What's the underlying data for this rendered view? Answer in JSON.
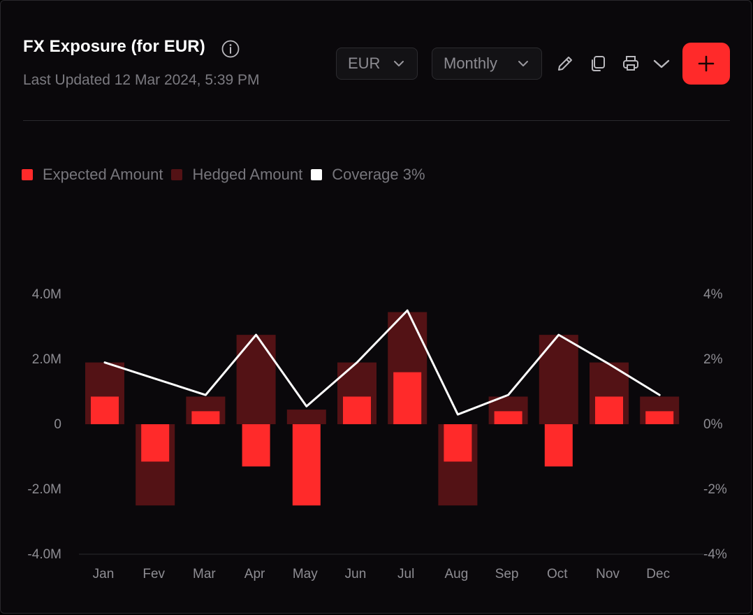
{
  "header": {
    "title": "FX Exposure (for EUR)",
    "last_updated": "Last Updated 12 Mar 2024, 5:39 PM"
  },
  "controls": {
    "currency": "EUR",
    "period": "Monthly"
  },
  "colors": {
    "expected": "#ff2a2a",
    "hedged": "#531215",
    "coverage": "#ffffff",
    "accent": "#ff2a2a"
  },
  "icons": {
    "info": "info-icon",
    "edit": "pencil-icon",
    "copy": "copy-icon",
    "print": "printer-icon",
    "more": "chevron-down-icon",
    "add": "plus-icon"
  },
  "chart_data": {
    "type": "bar",
    "legend": [
      "Expected Amount",
      "Hedged Amount",
      "Coverage 3%"
    ],
    "legend_position": "top-left",
    "categories": [
      "Jan",
      "Fev",
      "Mar",
      "Apr",
      "May",
      "Jun",
      "Jul",
      "Aug",
      "Sep",
      "Oct",
      "Nov",
      "Dec"
    ],
    "series": [
      {
        "name": "Expected Amount",
        "type": "bar",
        "axis": "left",
        "values": [
          0.85,
          -1.15,
          0.4,
          -1.3,
          -2.5,
          0.85,
          1.6,
          -1.15,
          0.4,
          -1.3,
          0.85,
          0.4
        ]
      },
      {
        "name": "Hedged Amount",
        "type": "bar",
        "axis": "left",
        "values": [
          1.9,
          -2.5,
          0.85,
          2.75,
          0.45,
          1.9,
          3.45,
          -2.5,
          0.85,
          2.75,
          1.9,
          0.85
        ]
      },
      {
        "name": "Coverage 3%",
        "type": "line",
        "axis": "right",
        "values": [
          1.9,
          1.4,
          0.9,
          2.75,
          0.55,
          1.9,
          3.5,
          0.3,
          0.9,
          2.75,
          1.85,
          0.9
        ]
      }
    ],
    "y_left": {
      "ticks": [
        "4.0M",
        "2.0M",
        "0",
        "-2.0M",
        "-4.0M"
      ],
      "ylim": [
        -4,
        4
      ],
      "unit": "M"
    },
    "y_right": {
      "ticks": [
        "4%",
        "2%",
        "0%",
        "-2%",
        "-4%"
      ],
      "ylim": [
        -4,
        4
      ],
      "unit": "%"
    }
  }
}
